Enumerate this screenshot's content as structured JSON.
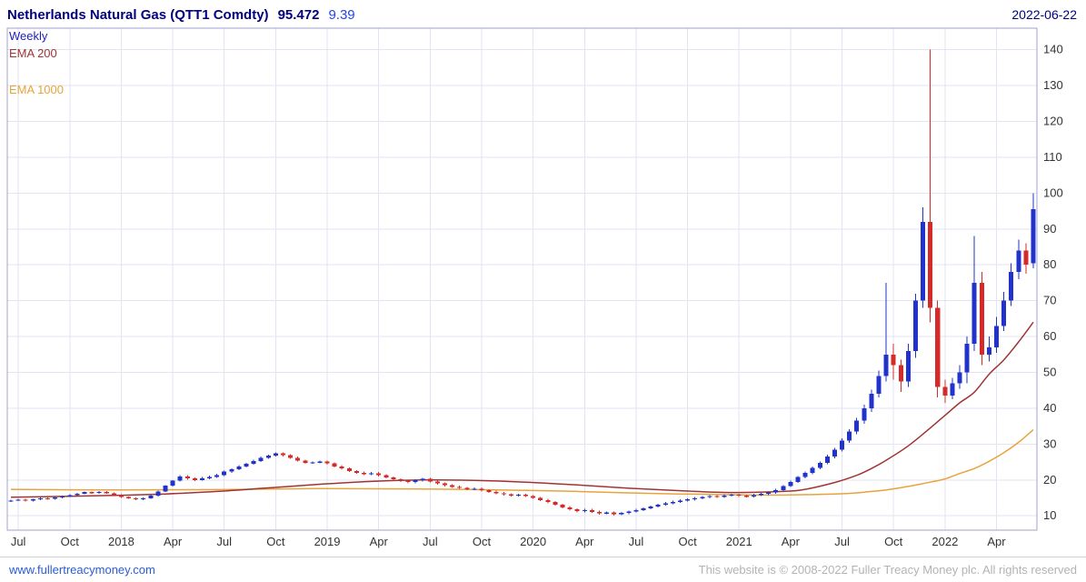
{
  "header": {
    "title": "Netherlands Natural Gas (QTT1 Comdty)",
    "price": "95.472",
    "change": "9.39",
    "date": "2022-06-22"
  },
  "legend": {
    "series": "Weekly",
    "ema200": "EMA 200",
    "ema1000": "EMA 1000"
  },
  "footer": {
    "website": "www.fullertreacymoney.com",
    "copyright": "This website is © 2008-2022 Fuller Treacy Money plc. All rights reserved"
  },
  "colors": {
    "up": "#2233cc",
    "down": "#d42a2a",
    "ema200": "#a03434",
    "ema1000": "#e8a33d",
    "weekly": "#2222bb",
    "grid": "#e3e3f3",
    "frame": "#9fa3cc",
    "axis_text": "#333333"
  },
  "chart_data": {
    "type": "candlestick",
    "title": "Netherlands Natural Gas (QTT1 Comdty)",
    "timeframe": "Weekly",
    "last_price": 95.472,
    "change": 9.39,
    "as_of_date": "2022-06-22",
    "legend_position": "top-left",
    "grid": true,
    "ylim": [
      6,
      146
    ],
    "y_ticks": [
      10,
      20,
      30,
      40,
      50,
      60,
      70,
      80,
      90,
      100,
      110,
      120,
      130,
      140
    ],
    "x_labels": [
      "Jul",
      "Oct",
      "2018",
      "Apr",
      "Jul",
      "Oct",
      "2019",
      "Apr",
      "Jul",
      "Oct",
      "2020",
      "Apr",
      "Jul",
      "Oct",
      "2021",
      "Apr",
      "Jul",
      "Oct",
      "2022",
      "Apr"
    ],
    "x_label_indices": [
      1,
      8,
      15,
      22,
      29,
      36,
      43,
      50,
      57,
      64,
      71,
      78,
      85,
      92,
      99,
      106,
      113,
      120,
      127,
      134
    ],
    "candles": [
      [
        14.1,
        14.5,
        13.9,
        14.3
      ],
      [
        14.3,
        14.8,
        14.1,
        14.5
      ],
      [
        14.5,
        14.7,
        14.0,
        14.2
      ],
      [
        14.2,
        14.8,
        14.0,
        14.6
      ],
      [
        14.6,
        15.1,
        14.4,
        14.9
      ],
      [
        14.9,
        15.1,
        14.5,
        14.7
      ],
      [
        14.7,
        15.3,
        14.5,
        15.1
      ],
      [
        15.1,
        15.6,
        14.9,
        15.4
      ],
      [
        15.4,
        16.0,
        15.2,
        15.8
      ],
      [
        15.8,
        16.4,
        15.6,
        16.2
      ],
      [
        16.2,
        16.8,
        16.0,
        16.6
      ],
      [
        16.6,
        16.8,
        16.2,
        16.4
      ],
      [
        16.4,
        16.9,
        16.2,
        16.7
      ],
      [
        16.7,
        16.9,
        16.1,
        16.3
      ],
      [
        16.3,
        16.5,
        15.6,
        15.8
      ],
      [
        15.8,
        16.0,
        15.0,
        15.2
      ],
      [
        15.2,
        15.4,
        14.7,
        14.9
      ],
      [
        14.9,
        15.1,
        14.4,
        14.6
      ],
      [
        14.6,
        15.1,
        14.4,
        14.9
      ],
      [
        14.9,
        15.8,
        14.7,
        15.6
      ],
      [
        15.6,
        17.0,
        15.4,
        16.8
      ],
      [
        16.8,
        18.6,
        16.6,
        18.4
      ],
      [
        18.4,
        20.0,
        18.2,
        19.8
      ],
      [
        19.8,
        21.3,
        19.6,
        21.0
      ],
      [
        21.0,
        21.3,
        20.1,
        20.4
      ],
      [
        20.4,
        20.7,
        19.7,
        20.0
      ],
      [
        20.0,
        20.8,
        19.8,
        20.5
      ],
      [
        20.5,
        21.2,
        20.2,
        20.9
      ],
      [
        20.9,
        21.7,
        20.6,
        21.4
      ],
      [
        21.4,
        22.6,
        21.1,
        22.3
      ],
      [
        22.3,
        23.3,
        22.0,
        23.0
      ],
      [
        23.0,
        24.1,
        22.7,
        23.8
      ],
      [
        23.8,
        24.8,
        23.5,
        24.5
      ],
      [
        24.5,
        25.6,
        24.2,
        25.3
      ],
      [
        25.3,
        26.5,
        25.0,
        26.2
      ],
      [
        26.2,
        27.1,
        25.9,
        26.8
      ],
      [
        26.8,
        27.7,
        26.5,
        27.4
      ],
      [
        27.4,
        27.7,
        26.6,
        26.9
      ],
      [
        26.9,
        27.2,
        25.9,
        26.2
      ],
      [
        26.2,
        26.5,
        25.1,
        25.4
      ],
      [
        25.4,
        25.7,
        24.5,
        24.8
      ],
      [
        24.8,
        25.2,
        24.5,
        24.9
      ],
      [
        24.9,
        25.4,
        24.6,
        25.1
      ],
      [
        25.1,
        25.4,
        24.3,
        24.6
      ],
      [
        24.6,
        24.9,
        23.5,
        23.8
      ],
      [
        23.8,
        24.1,
        22.9,
        23.2
      ],
      [
        23.2,
        23.5,
        22.2,
        22.5
      ],
      [
        22.5,
        22.8,
        21.7,
        22.0
      ],
      [
        22.0,
        22.3,
        21.3,
        21.6
      ],
      [
        21.6,
        22.2,
        21.3,
        21.9
      ],
      [
        21.9,
        22.2,
        21.0,
        21.3
      ],
      [
        21.3,
        21.6,
        20.4,
        20.7
      ],
      [
        20.7,
        21.0,
        19.9,
        20.2
      ],
      [
        20.2,
        20.5,
        19.5,
        19.8
      ],
      [
        19.8,
        20.1,
        19.1,
        19.4
      ],
      [
        19.4,
        20.2,
        19.1,
        19.9
      ],
      [
        19.9,
        20.6,
        19.6,
        20.3
      ],
      [
        20.3,
        20.6,
        19.3,
        19.6
      ],
      [
        19.6,
        19.9,
        18.7,
        19.0
      ],
      [
        19.0,
        19.3,
        18.2,
        18.5
      ],
      [
        18.5,
        18.8,
        17.8,
        18.1
      ],
      [
        18.1,
        18.4,
        17.5,
        17.8
      ],
      [
        17.8,
        18.1,
        17.1,
        17.4
      ],
      [
        17.4,
        17.9,
        17.1,
        17.6
      ],
      [
        17.6,
        17.9,
        16.8,
        17.1
      ],
      [
        17.1,
        17.4,
        16.4,
        16.7
      ],
      [
        16.7,
        17.0,
        16.0,
        16.3
      ],
      [
        16.3,
        16.6,
        15.7,
        16.0
      ],
      [
        16.0,
        16.3,
        15.4,
        15.7
      ],
      [
        15.7,
        16.2,
        15.4,
        15.9
      ],
      [
        15.9,
        16.2,
        15.2,
        15.5
      ],
      [
        15.5,
        15.8,
        14.7,
        15.0
      ],
      [
        15.0,
        15.3,
        14.1,
        14.4
      ],
      [
        14.4,
        14.7,
        13.5,
        13.8
      ],
      [
        13.8,
        14.1,
        12.8,
        13.1
      ],
      [
        13.1,
        13.4,
        12.1,
        12.4
      ],
      [
        12.4,
        12.7,
        11.5,
        11.8
      ],
      [
        11.8,
        12.1,
        10.9,
        11.3
      ],
      [
        11.3,
        11.9,
        11.0,
        11.6
      ],
      [
        11.6,
        11.9,
        10.8,
        11.1
      ],
      [
        11.1,
        11.4,
        10.3,
        10.7
      ],
      [
        10.7,
        11.2,
        10.4,
        10.9
      ],
      [
        10.9,
        11.2,
        10.1,
        10.5
      ],
      [
        10.5,
        11.1,
        10.2,
        10.8
      ],
      [
        10.8,
        11.5,
        10.5,
        11.2
      ],
      [
        11.2,
        11.9,
        10.9,
        11.6
      ],
      [
        11.6,
        12.4,
        11.3,
        12.1
      ],
      [
        12.1,
        12.9,
        11.8,
        12.6
      ],
      [
        12.6,
        13.4,
        12.3,
        13.1
      ],
      [
        13.1,
        13.8,
        12.8,
        13.5
      ],
      [
        13.5,
        14.2,
        13.2,
        13.9
      ],
      [
        13.9,
        14.6,
        13.6,
        14.3
      ],
      [
        14.3,
        14.9,
        14.0,
        14.6
      ],
      [
        14.6,
        15.2,
        14.3,
        14.9
      ],
      [
        14.9,
        15.5,
        14.6,
        15.2
      ],
      [
        15.2,
        15.8,
        14.9,
        15.5
      ],
      [
        15.5,
        15.8,
        15.0,
        15.3
      ],
      [
        15.3,
        16.0,
        15.0,
        15.7
      ],
      [
        15.7,
        16.2,
        15.4,
        15.9
      ],
      [
        15.9,
        16.2,
        15.3,
        15.6
      ],
      [
        15.6,
        15.9,
        15.1,
        15.4
      ],
      [
        15.4,
        16.1,
        15.1,
        15.8
      ],
      [
        15.8,
        16.4,
        15.5,
        16.1
      ],
      [
        16.1,
        16.8,
        15.8,
        16.5
      ],
      [
        16.5,
        17.5,
        16.2,
        17.2
      ],
      [
        17.2,
        18.6,
        16.9,
        18.3
      ],
      [
        18.3,
        19.8,
        18.0,
        19.5
      ],
      [
        19.5,
        21.1,
        19.2,
        20.8
      ],
      [
        20.8,
        22.4,
        20.5,
        22.0
      ],
      [
        22.0,
        23.8,
        21.6,
        23.4
      ],
      [
        23.4,
        25.2,
        23.0,
        24.8
      ],
      [
        24.8,
        27.0,
        24.4,
        26.5
      ],
      [
        26.5,
        29.0,
        26.0,
        28.5
      ],
      [
        28.5,
        31.6,
        28.0,
        31.0
      ],
      [
        31.0,
        34.2,
        30.4,
        33.5
      ],
      [
        33.5,
        37.3,
        32.8,
        36.5
      ],
      [
        36.5,
        41.0,
        35.7,
        40.0
      ],
      [
        40.0,
        45.2,
        39.0,
        44.0
      ],
      [
        44.0,
        50.5,
        43.0,
        49.0
      ],
      [
        49.0,
        75.0,
        47.5,
        55.0
      ],
      [
        55.0,
        58.0,
        48.0,
        52.0
      ],
      [
        52.0,
        53.5,
        44.5,
        47.5
      ],
      [
        47.5,
        58.0,
        46.0,
        56.0
      ],
      [
        56.0,
        72.0,
        54.0,
        70.0
      ],
      [
        70.0,
        96.0,
        68.0,
        92.0
      ],
      [
        92.0,
        140.0,
        64.0,
        68.0
      ],
      [
        68.0,
        70.0,
        43.0,
        46.0
      ],
      [
        46.0,
        48.0,
        41.5,
        43.5
      ],
      [
        43.5,
        48.5,
        42.5,
        47.0
      ],
      [
        47.0,
        52.0,
        45.5,
        50.0
      ],
      [
        50.0,
        60.0,
        47.0,
        58.0
      ],
      [
        58.0,
        88.0,
        56.0,
        75.0
      ],
      [
        75.0,
        78.0,
        52.0,
        55.0
      ],
      [
        55.0,
        60.0,
        53.0,
        57.0
      ],
      [
        57.0,
        65.5,
        55.5,
        63.0
      ],
      [
        63.0,
        72.5,
        61.5,
        70.0
      ],
      [
        70.0,
        80.5,
        68.5,
        78.0
      ],
      [
        78.0,
        87.0,
        76.0,
        84.0
      ],
      [
        84.0,
        86.0,
        77.5,
        80.0
      ],
      [
        80.5,
        100.0,
        79.0,
        95.5
      ]
    ],
    "ema200": {
      "label": "EMA 200",
      "points": [
        [
          0,
          15.2
        ],
        [
          7,
          15.4
        ],
        [
          14,
          15.7
        ],
        [
          21,
          16.1
        ],
        [
          28,
          16.8
        ],
        [
          35,
          17.8
        ],
        [
          42,
          18.8
        ],
        [
          49,
          19.6
        ],
        [
          56,
          20.0
        ],
        [
          63,
          19.9
        ],
        [
          70,
          19.4
        ],
        [
          77,
          18.6
        ],
        [
          84,
          17.7
        ],
        [
          91,
          17.0
        ],
        [
          98,
          16.5
        ],
        [
          105,
          16.8
        ],
        [
          108,
          17.4
        ],
        [
          112,
          19.3
        ],
        [
          115,
          21.3
        ],
        [
          117,
          23.2
        ],
        [
          119,
          25.5
        ],
        [
          122,
          29.5
        ],
        [
          125,
          34.5
        ],
        [
          127,
          38.0
        ],
        [
          129,
          41.5
        ],
        [
          131,
          44.5
        ],
        [
          133,
          49.5
        ],
        [
          135,
          53.5
        ],
        [
          137,
          58.5
        ],
        [
          139,
          64.0
        ]
      ]
    },
    "ema1000": {
      "label": "EMA 1000",
      "points": [
        [
          0,
          17.4
        ],
        [
          14,
          17.2
        ],
        [
          28,
          17.3
        ],
        [
          42,
          17.6
        ],
        [
          56,
          17.5
        ],
        [
          70,
          17.1
        ],
        [
          77,
          16.8
        ],
        [
          84,
          16.4
        ],
        [
          91,
          16.1
        ],
        [
          98,
          15.9
        ],
        [
          105,
          15.8
        ],
        [
          112,
          16.1
        ],
        [
          115,
          16.4
        ],
        [
          117,
          16.8
        ],
        [
          119,
          17.2
        ],
        [
          122,
          18.2
        ],
        [
          125,
          19.4
        ],
        [
          127,
          20.3
        ],
        [
          129,
          21.8
        ],
        [
          131,
          23.2
        ],
        [
          133,
          25.2
        ],
        [
          135,
          27.6
        ],
        [
          137,
          30.5
        ],
        [
          139,
          34.0
        ]
      ]
    }
  }
}
